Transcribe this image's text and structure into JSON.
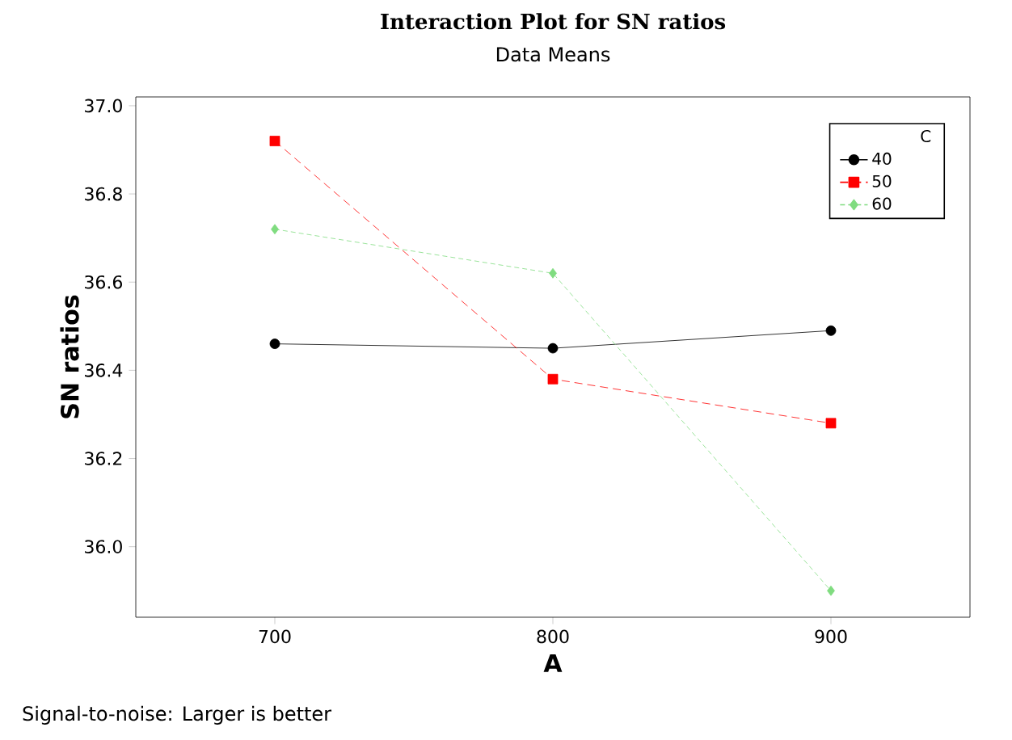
{
  "chart_data": {
    "type": "line",
    "title": "Interaction Plot for SN ratios",
    "subtitle": "Data Means",
    "xlabel": "A",
    "ylabel": "SN ratios",
    "legend_title": "C",
    "annotations": [
      "Signal-to-noise: Larger is better"
    ],
    "x": [
      700,
      800,
      900
    ],
    "xlim": [
      650,
      950
    ],
    "xticks": [
      700,
      800,
      900
    ],
    "ylim": [
      35.84,
      37.02
    ],
    "yticks": [
      {
        "value": 36.0,
        "label": "36.0"
      },
      {
        "value": 36.2,
        "label": "36.2"
      },
      {
        "value": 36.4,
        "label": "36.4"
      },
      {
        "value": 36.6,
        "label": "36.6"
      },
      {
        "value": 36.8,
        "label": "36.8"
      },
      {
        "value": 37.0,
        "label": "37.0"
      }
    ],
    "legend": "top right",
    "grid": false,
    "series": [
      {
        "name": "40",
        "color": "#000000",
        "marker": "circle",
        "line_style": "solid",
        "values": [
          36.46,
          36.45,
          36.49
        ]
      },
      {
        "name": "50",
        "color": "#ff0000",
        "marker": "square",
        "line_style": "dashed",
        "values": [
          36.92,
          36.38,
          36.28
        ]
      },
      {
        "name": "60",
        "color": "#80dc80",
        "marker": "diamond",
        "line_style": "dotted",
        "values": [
          36.72,
          36.62,
          35.9
        ]
      }
    ]
  }
}
